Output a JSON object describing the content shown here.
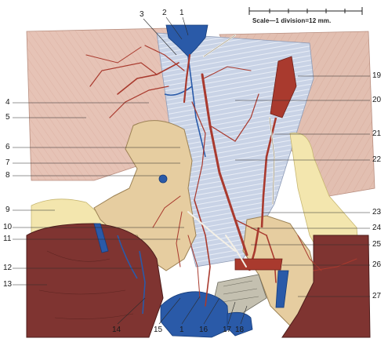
{
  "scale": {
    "text": "Scale—1 division=12 mm."
  },
  "labels": {
    "l1": "1",
    "l2": "2",
    "l3": "3",
    "l4": "4",
    "l5": "5",
    "l6": "6",
    "l7": "7",
    "l8": "8",
    "l9": "9",
    "l10": "10",
    "l11": "11",
    "l12": "12",
    "l13": "13",
    "l14": "14",
    "l15": "15",
    "l1b": "1",
    "l16": "16",
    "l17": "17",
    "l18": "18",
    "l19": "19",
    "l20": "20",
    "l21": "21",
    "l22": "22",
    "l23": "23",
    "l24": "24",
    "l25": "25",
    "l26": "26",
    "l27": "27"
  },
  "colors": {
    "muscle_pink": "#e6c3b6",
    "fascia_blue": "#c9d3e6",
    "gland_tan": "#e6cda0",
    "fat_yellow": "#f3e6ae",
    "liver_dark": "#7f3431",
    "artery_red": "#a93a2e",
    "vein_blue": "#2a5aa8",
    "nerve_white": "#f4f0e6",
    "bone_grey": "#c4c0b0"
  }
}
